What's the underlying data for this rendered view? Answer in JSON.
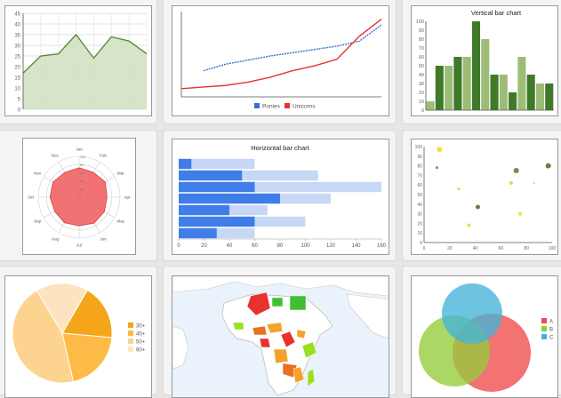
{
  "chart_data": [
    {
      "type": "area",
      "title": "",
      "x": [
        0,
        1,
        2,
        3,
        4,
        5,
        6,
        7
      ],
      "values": [
        17,
        25,
        26,
        35,
        24,
        34,
        32,
        26
      ],
      "ylim": [
        0,
        45
      ],
      "yticks": [
        "0",
        "5",
        "10",
        "15",
        "20",
        "25",
        "30",
        "35",
        "40",
        "45"
      ],
      "grid": true,
      "color": "#5c8a3a",
      "fill": "#cfdfc0"
    },
    {
      "type": "line",
      "title": "",
      "x": [
        0,
        1,
        2,
        3,
        4,
        5,
        6,
        7,
        8,
        9
      ],
      "ylim": [
        0,
        100
      ],
      "series": [
        {
          "name": "Ponies",
          "color": "#3b6fd8",
          "dashed": true,
          "values": [
            null,
            32,
            40,
            45,
            50,
            54,
            58,
            62,
            68,
            88
          ]
        },
        {
          "name": "Unicorns",
          "color": "#e8322d",
          "dashed": false,
          "values": [
            10,
            12,
            14,
            18,
            24,
            32,
            38,
            46,
            74,
            95
          ]
        }
      ],
      "legend": "bottom"
    },
    {
      "type": "bar",
      "title": "Vertical bar chart",
      "ylim": [
        0,
        100
      ],
      "yticks": [
        "0",
        "10",
        "20",
        "30",
        "40",
        "50",
        "60",
        "70",
        "80",
        "90",
        "100"
      ],
      "values": [
        10,
        50,
        50,
        60,
        60,
        100,
        80,
        40,
        40,
        20,
        60,
        40,
        30,
        30
      ],
      "colors": [
        "#9dbd76",
        "#3f7a2a",
        "#9dbd76",
        "#3f7a2a",
        "#9dbd76",
        "#3f7a2a",
        "#9dbd76",
        "#3f7a2a",
        "#9dbd76",
        "#3f7a2a",
        "#9dbd76",
        "#3f7a2a",
        "#9dbd76",
        "#3f7a2a"
      ]
    },
    {
      "type": "radar",
      "title": "",
      "categories": [
        "Jan",
        "Feb",
        "Mar",
        "Apr",
        "May",
        "Jun",
        "Jul",
        "Aug",
        "Sep",
        "Oct",
        "Nov",
        "Dec"
      ],
      "values": [
        0.72,
        0.7,
        0.74,
        0.68,
        0.71,
        0.73,
        0.7,
        0.72,
        0.69,
        0.71,
        0.74,
        0.7
      ],
      "rings": [
        "20",
        "40",
        "60",
        "80",
        "100"
      ],
      "color": "#f05a5a"
    },
    {
      "type": "bar",
      "orientation": "horizontal",
      "title": "Horizontal bar chart",
      "xlim": [
        0,
        160
      ],
      "xticks": [
        "0",
        "20",
        "40",
        "60",
        "80",
        "100",
        "120",
        "140",
        "160"
      ],
      "series": [
        {
          "name": "",
          "color": "#c6d8f6",
          "values": [
            60,
            110,
            160,
            120,
            70,
            100,
            60
          ]
        },
        {
          "name": "",
          "color": "#3f7ee8",
          "values": [
            10,
            50,
            60,
            80,
            40,
            60,
            30
          ]
        }
      ]
    },
    {
      "type": "scatter",
      "title": "",
      "xlim": [
        0,
        100
      ],
      "ylim": [
        0,
        100
      ],
      "xticks": [
        "0",
        "20",
        "40",
        "60",
        "80",
        "100"
      ],
      "yticks": [
        "0",
        "10",
        "20",
        "30",
        "40",
        "50",
        "60",
        "70",
        "80",
        "90",
        "100"
      ],
      "points": [
        {
          "x": 12,
          "y": 97,
          "r": 3,
          "color": "#f0e040"
        },
        {
          "x": 10,
          "y": 78,
          "r": 1.5,
          "color": "#8a8a5a"
        },
        {
          "x": 27,
          "y": 56,
          "r": 1.5,
          "color": "#e0d840"
        },
        {
          "x": 72,
          "y": 75,
          "r": 3,
          "color": "#7a8a4a"
        },
        {
          "x": 97,
          "y": 80,
          "r": 3,
          "color": "#7a7a4a"
        },
        {
          "x": 68,
          "y": 62,
          "r": 2,
          "color": "#e8d840"
        },
        {
          "x": 86,
          "y": 62,
          "r": 1,
          "color": "#caca8a"
        },
        {
          "x": 42,
          "y": 37,
          "r": 2.5,
          "color": "#6a7a4a"
        },
        {
          "x": 75,
          "y": 30,
          "r": 2,
          "color": "#f0e040"
        },
        {
          "x": 35,
          "y": 18,
          "r": 2,
          "color": "#f0e040"
        }
      ]
    },
    {
      "type": "pie",
      "title": "",
      "slices": [
        {
          "label": "30+",
          "value": 18,
          "color": "#f4a51a"
        },
        {
          "label": "40+",
          "value": 20,
          "color": "#fbbb46"
        },
        {
          "label": "50+",
          "value": 45,
          "color": "#fdd390"
        },
        {
          "label": "60+",
          "value": 17,
          "color": "#fde4c0"
        }
      ],
      "legend": "right"
    },
    {
      "type": "geo",
      "title": "",
      "region": "Africa",
      "colors": [
        "#e8322d",
        "#e87020",
        "#f5a22a",
        "#9be020",
        "#40c030"
      ]
    },
    {
      "type": "venn",
      "title": "",
      "sets": [
        {
          "label": "A",
          "color": "#f04a4a"
        },
        {
          "label": "B",
          "color": "#94cc3a"
        },
        {
          "label": "C",
          "color": "#44b3d8"
        }
      ],
      "legend": "right"
    }
  ]
}
